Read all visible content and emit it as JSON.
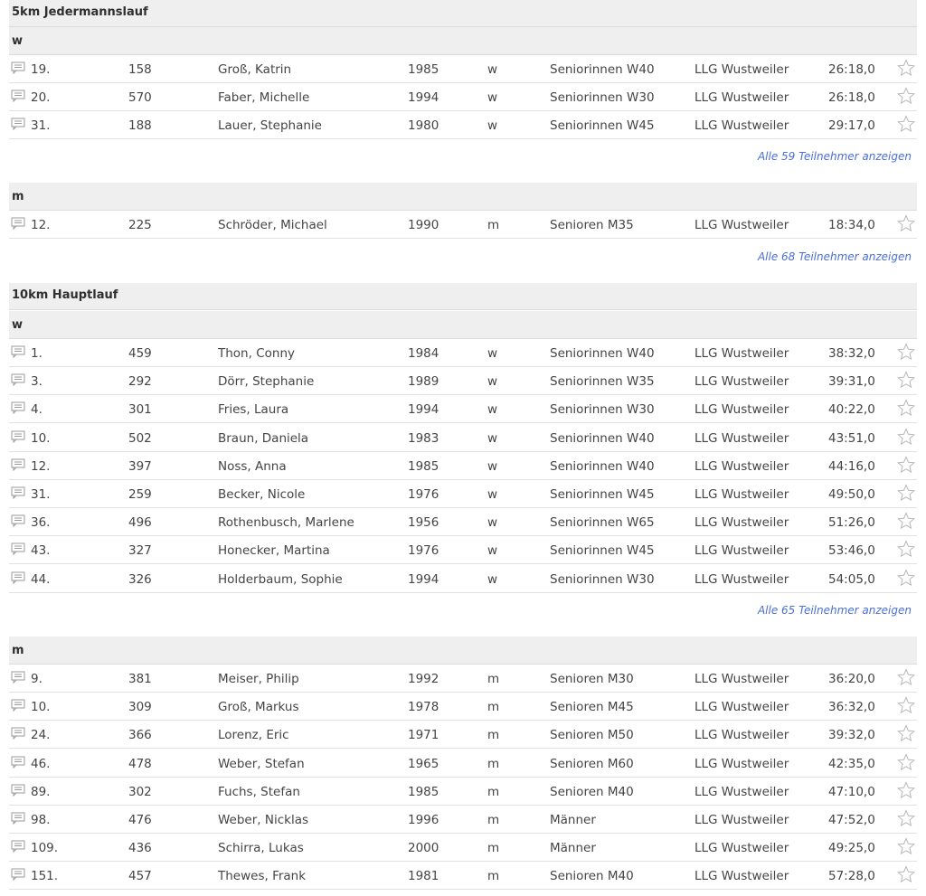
{
  "sections": [
    {
      "title": "5km Jedermannslauf",
      "groups": [
        {
          "label": "w",
          "rows": [
            {
              "rank": "19.",
              "bib": "158",
              "name": "Groß, Katrin",
              "year": "1985",
              "sex": "w",
              "class": "Seniorinnen W40",
              "club": "LLG Wustweiler",
              "time": "26:18,0"
            },
            {
              "rank": "20.",
              "bib": "570",
              "name": "Faber, Michelle",
              "year": "1994",
              "sex": "w",
              "class": "Seniorinnen W30",
              "club": "LLG Wustweiler",
              "time": "26:18,0"
            },
            {
              "rank": "31.",
              "bib": "188",
              "name": "Lauer, Stephanie",
              "year": "1980",
              "sex": "w",
              "class": "Seniorinnen W45",
              "club": "LLG Wustweiler",
              "time": "29:17,0"
            }
          ],
          "more": "Alle 59 Teilnehmer anzeigen"
        },
        {
          "label": "m",
          "rows": [
            {
              "rank": "12.",
              "bib": "225",
              "name": "Schröder, Michael",
              "year": "1990",
              "sex": "m",
              "class": "Senioren M35",
              "club": "LLG Wustweiler",
              "time": "18:34,0"
            }
          ],
          "more": "Alle 68 Teilnehmer anzeigen"
        }
      ]
    },
    {
      "title": "10km Hauptlauf",
      "groups": [
        {
          "label": "w",
          "rows": [
            {
              "rank": "1.",
              "bib": "459",
              "name": "Thon, Conny",
              "year": "1984",
              "sex": "w",
              "class": "Seniorinnen W40",
              "club": "LLG Wustweiler",
              "time": "38:32,0"
            },
            {
              "rank": "3.",
              "bib": "292",
              "name": "Dörr, Stephanie",
              "year": "1989",
              "sex": "w",
              "class": "Seniorinnen W35",
              "club": "LLG Wustweiler",
              "time": "39:31,0"
            },
            {
              "rank": "4.",
              "bib": "301",
              "name": "Fries, Laura",
              "year": "1994",
              "sex": "w",
              "class": "Seniorinnen W30",
              "club": "LLG Wustweiler",
              "time": "40:22,0"
            },
            {
              "rank": "10.",
              "bib": "502",
              "name": "Braun, Daniela",
              "year": "1983",
              "sex": "w",
              "class": "Seniorinnen W40",
              "club": "LLG Wustweiler",
              "time": "43:51,0"
            },
            {
              "rank": "12.",
              "bib": "397",
              "name": "Noss, Anna",
              "year": "1985",
              "sex": "w",
              "class": "Seniorinnen W40",
              "club": "LLG Wustweiler",
              "time": "44:16,0"
            },
            {
              "rank": "31.",
              "bib": "259",
              "name": "Becker, Nicole",
              "year": "1976",
              "sex": "w",
              "class": "Seniorinnen W45",
              "club": "LLG Wustweiler",
              "time": "49:50,0"
            },
            {
              "rank": "36.",
              "bib": "496",
              "name": "Rothenbusch, Marlene",
              "year": "1956",
              "sex": "w",
              "class": "Seniorinnen W65",
              "club": "LLG Wustweiler",
              "time": "51:26,0"
            },
            {
              "rank": "43.",
              "bib": "327",
              "name": "Honecker, Martina",
              "year": "1976",
              "sex": "w",
              "class": "Seniorinnen W45",
              "club": "LLG Wustweiler",
              "time": "53:46,0"
            },
            {
              "rank": "44.",
              "bib": "326",
              "name": "Holderbaum, Sophie",
              "year": "1994",
              "sex": "w",
              "class": "Seniorinnen W30",
              "club": "LLG Wustweiler",
              "time": "54:05,0"
            }
          ],
          "more": "Alle 65 Teilnehmer anzeigen"
        },
        {
          "label": "m",
          "rows": [
            {
              "rank": "9.",
              "bib": "381",
              "name": "Meiser, Philip",
              "year": "1992",
              "sex": "m",
              "class": "Senioren M30",
              "club": "LLG Wustweiler",
              "time": "36:20,0"
            },
            {
              "rank": "10.",
              "bib": "309",
              "name": "Groß, Markus",
              "year": "1978",
              "sex": "m",
              "class": "Senioren M45",
              "club": "LLG Wustweiler",
              "time": "36:32,0"
            },
            {
              "rank": "24.",
              "bib": "366",
              "name": "Lorenz, Eric",
              "year": "1971",
              "sex": "m",
              "class": "Senioren M50",
              "club": "LLG Wustweiler",
              "time": "39:32,0"
            },
            {
              "rank": "46.",
              "bib": "478",
              "name": "Weber, Stefan",
              "year": "1965",
              "sex": "m",
              "class": "Senioren M60",
              "club": "LLG Wustweiler",
              "time": "42:35,0"
            },
            {
              "rank": "89.",
              "bib": "302",
              "name": "Fuchs, Stefan",
              "year": "1985",
              "sex": "m",
              "class": "Senioren M40",
              "club": "LLG Wustweiler",
              "time": "47:10,0"
            },
            {
              "rank": "98.",
              "bib": "476",
              "name": "Weber, Nicklas",
              "year": "1996",
              "sex": "m",
              "class": "Männer",
              "club": "LLG Wustweiler",
              "time": "47:52,0"
            },
            {
              "rank": "109.",
              "bib": "436",
              "name": "Schirra, Lukas",
              "year": "2000",
              "sex": "m",
              "class": "Männer",
              "club": "LLG Wustweiler",
              "time": "49:25,0"
            },
            {
              "rank": "151.",
              "bib": "457",
              "name": "Thewes, Frank",
              "year": "1981",
              "sex": "m",
              "class": "Senioren M40",
              "club": "LLG Wustweiler",
              "time": "57:28,0"
            }
          ],
          "more": ""
        }
      ]
    }
  ],
  "icons": {
    "row_comment": "comment-icon",
    "row_favorite": "star-icon"
  },
  "colors": {
    "header_bg": "#efefef",
    "link": "#4a6fd6",
    "text": "#444444"
  }
}
